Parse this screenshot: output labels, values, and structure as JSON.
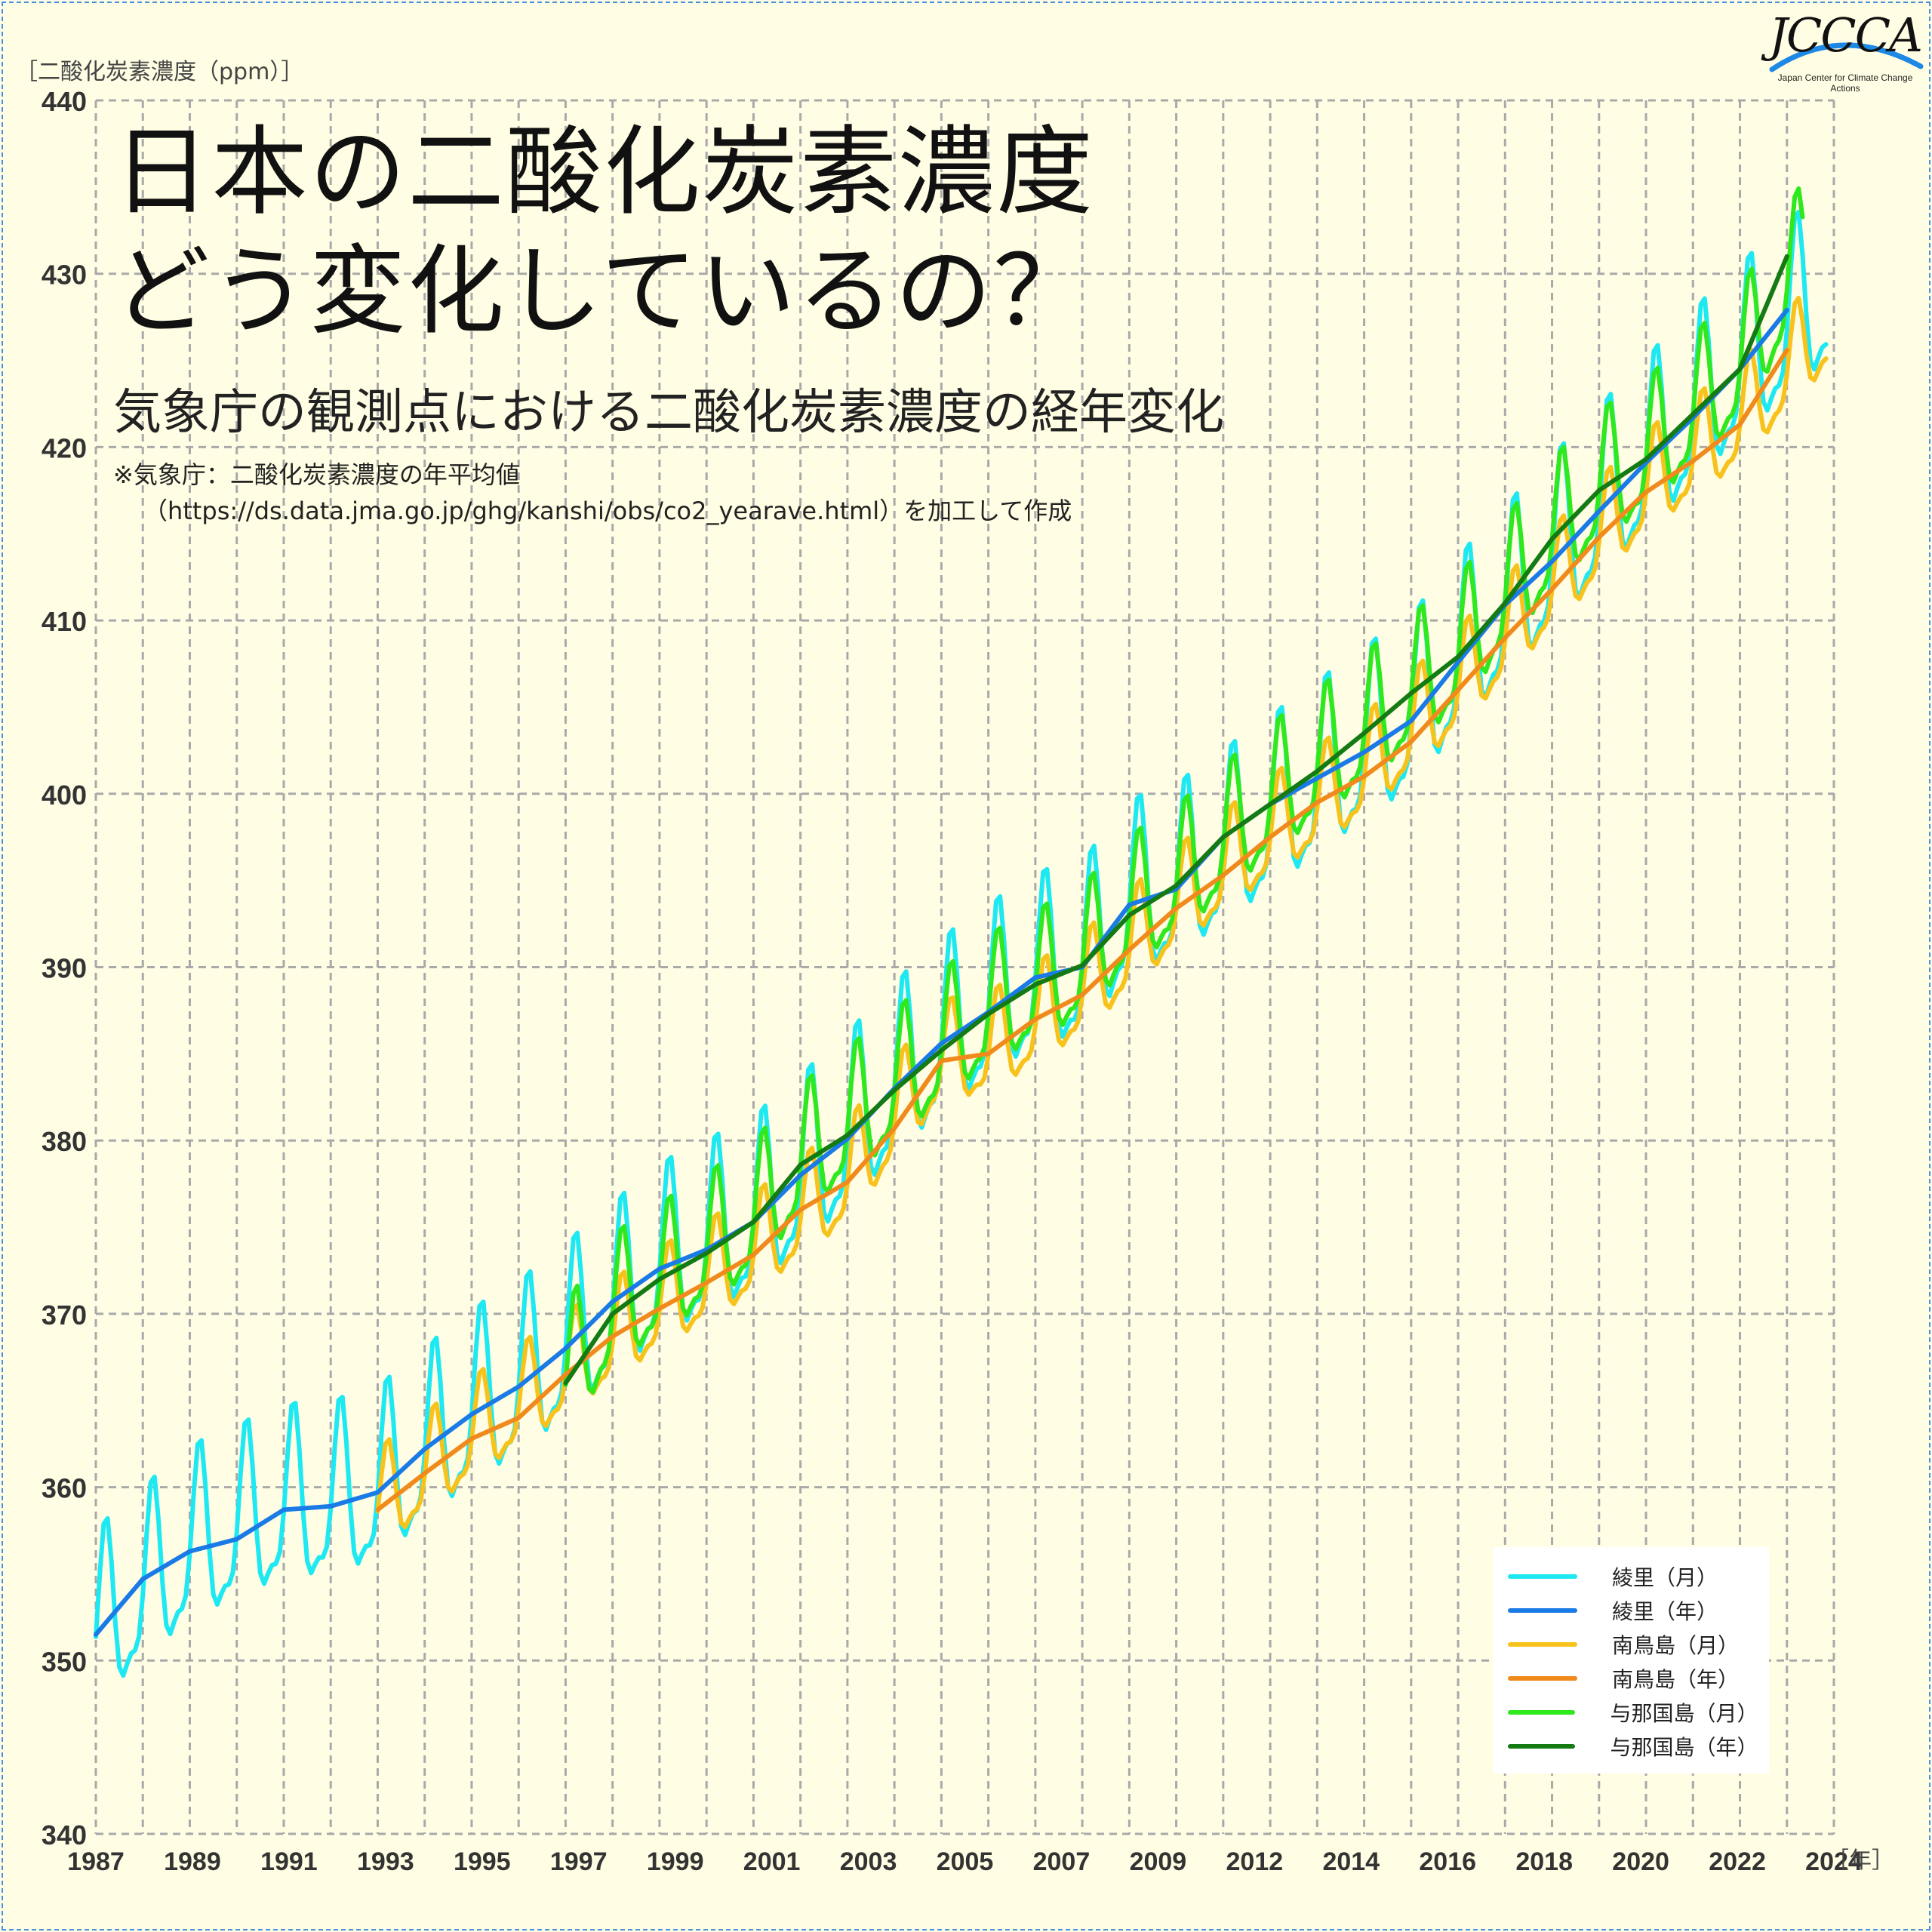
{
  "header": {
    "title_line1": "日本の二酸化炭素濃度",
    "title_line2": "どう変化しているの？",
    "subtitle": "気象庁の観測点における二酸化炭素濃度の経年変化",
    "note_line1": "※気象庁：二酸化炭素濃度の年平均値",
    "note_line2": "（https://ds.data.jma.go.jp/ghg/kanshi/obs/co2_yearave.html）を加工して作成"
  },
  "logo": {
    "text": "JCCCA",
    "subtext": "Japan Center for Climate Change Actions"
  },
  "chart_data": {
    "type": "line",
    "ylabel": "［二酸化炭素濃度（ppm）］",
    "xlabel": "［年］",
    "ylim": [
      340,
      440
    ],
    "xlim": [
      1987,
      2024
    ],
    "yticks": [
      340,
      350,
      360,
      370,
      380,
      390,
      400,
      410,
      420,
      430,
      440
    ],
    "xticks": [
      "1987",
      "1989",
      "1991",
      "1993",
      "1995",
      "1997",
      "1999",
      "2001",
      "2003",
      "2005",
      "2007",
      "2009",
      "2012",
      "2014",
      "2016",
      "2018",
      "2020",
      "2022",
      "2024"
    ],
    "grid": true,
    "legend_position": "bottom-right",
    "series": [
      {
        "name": "綾里（月）",
        "color": "#1ee9f2",
        "kind": "monthly",
        "start": 1987,
        "end": 2023.9,
        "base": [
          [
            1987,
            351.5
          ],
          [
            1989,
            356.3
          ],
          [
            1991,
            358.7
          ],
          [
            1992,
            358.9
          ],
          [
            1993,
            359.7
          ],
          [
            1995,
            364.2
          ],
          [
            1996,
            365.8
          ],
          [
            1997,
            368.0
          ],
          [
            1999,
            372.6
          ],
          [
            2001,
            375.3
          ],
          [
            2003,
            380.1
          ],
          [
            2004,
            383.0
          ],
          [
            2005,
            385.6
          ],
          [
            2007,
            389.4
          ],
          [
            2008,
            390.0
          ],
          [
            2009,
            393.6
          ],
          [
            2010,
            394.5
          ],
          [
            2012,
            398.4
          ],
          [
            2014,
            402.4
          ],
          [
            2015,
            404.2
          ],
          [
            2016,
            407.6
          ],
          [
            2018,
            413.4
          ],
          [
            2020,
            419.1
          ],
          [
            2022,
            424.5
          ],
          [
            2023.9,
            429.0
          ]
        ],
        "amplitude": 8.6
      },
      {
        "name": "綾里（年）",
        "color": "#1a7ae6",
        "kind": "annual",
        "x": [
          1987,
          1988,
          1989,
          1990,
          1991,
          1992,
          1993,
          1994,
          1995,
          1996,
          1997,
          1998,
          1999,
          2000,
          2001,
          2002,
          2003,
          2004,
          2005,
          2006,
          2007,
          2008,
          2009,
          2010,
          2011,
          2012,
          2013,
          2014,
          2015,
          2016,
          2017,
          2018,
          2019,
          2020,
          2021,
          2022,
          2023
        ],
        "y": [
          351.5,
          354.7,
          356.3,
          357.0,
          358.7,
          358.9,
          359.7,
          362.2,
          364.2,
          365.8,
          368.0,
          370.7,
          372.6,
          373.7,
          375.3,
          378.0,
          380.1,
          383.0,
          385.6,
          387.4,
          389.4,
          390.0,
          393.6,
          394.5,
          397.5,
          399.4,
          400.9,
          402.4,
          404.2,
          407.6,
          410.9,
          413.4,
          416.3,
          419.1,
          421.7,
          424.5,
          427.9
        ]
      },
      {
        "name": "南鳥島（月）",
        "color": "#f8c21c",
        "kind": "monthly",
        "start": 1993,
        "end": 2023.9,
        "base": [
          [
            1993,
            358.7
          ],
          [
            1995,
            362.8
          ],
          [
            1997,
            366.5
          ],
          [
            1999,
            370.3
          ],
          [
            2001,
            373.4
          ],
          [
            2003,
            377.6
          ],
          [
            2005,
            384.6
          ],
          [
            2006,
            385.0
          ],
          [
            2008,
            388.4
          ],
          [
            2010,
            393.4
          ],
          [
            2012,
            397.5
          ],
          [
            2014,
            401.0
          ],
          [
            2016,
            406.0
          ],
          [
            2018,
            411.8
          ],
          [
            2020,
            417.4
          ],
          [
            2022,
            421.3
          ],
          [
            2023.9,
            427.0
          ]
        ],
        "amplitude": 5.0
      },
      {
        "name": "南鳥島（年）",
        "color": "#f08a1c",
        "kind": "annual",
        "x": [
          1993,
          1994,
          1995,
          1996,
          1997,
          1998,
          1999,
          2000,
          2001,
          2002,
          2003,
          2004,
          2005,
          2006,
          2007,
          2008,
          2009,
          2010,
          2011,
          2012,
          2013,
          2014,
          2015,
          2016,
          2017,
          2018,
          2019,
          2020,
          2021,
          2022,
          2023
        ],
        "y": [
          358.7,
          360.8,
          362.8,
          364.0,
          366.5,
          368.7,
          370.3,
          371.8,
          373.4,
          376.0,
          377.6,
          380.7,
          384.6,
          385.0,
          387.0,
          388.4,
          391.0,
          393.4,
          395.3,
          397.5,
          399.5,
          401.0,
          403.0,
          406.0,
          409.0,
          411.8,
          414.8,
          417.4,
          419.2,
          421.3,
          425.6
        ]
      },
      {
        "name": "与那国島（月）",
        "color": "#2fe81e",
        "kind": "monthly",
        "start": 1997,
        "end": 2023.4,
        "base": [
          [
            1997,
            366.0
          ],
          [
            1998,
            370.0
          ],
          [
            2000,
            373.5
          ],
          [
            2001,
            375.3
          ],
          [
            2002,
            378.6
          ],
          [
            2004,
            382.9
          ],
          [
            2005,
            385.2
          ],
          [
            2006,
            387.3
          ],
          [
            2008,
            390.1
          ],
          [
            2009,
            393.0
          ],
          [
            2010,
            394.7
          ],
          [
            2012,
            399.4
          ],
          [
            2014,
            403.5
          ],
          [
            2016,
            407.9
          ],
          [
            2018,
            414.7
          ],
          [
            2019,
            417.5
          ],
          [
            2020,
            419.3
          ],
          [
            2022,
            424.5
          ],
          [
            2023.4,
            431.0
          ]
        ],
        "amplitude": 6.5
      },
      {
        "name": "与那国島（年）",
        "color": "#147a14",
        "kind": "annual",
        "x": [
          1997,
          1998,
          1999,
          2000,
          2001,
          2002,
          2003,
          2004,
          2005,
          2006,
          2007,
          2008,
          2009,
          2010,
          2011,
          2012,
          2013,
          2014,
          2015,
          2016,
          2017,
          2018,
          2019,
          2020,
          2021,
          2022,
          2023
        ],
        "y": [
          366.0,
          370.0,
          372.0,
          373.5,
          375.3,
          378.6,
          380.3,
          382.9,
          385.2,
          387.3,
          389.0,
          390.1,
          393.0,
          394.7,
          397.5,
          399.4,
          401.3,
          403.5,
          405.8,
          407.9,
          411.0,
          414.7,
          417.5,
          419.3,
          421.9,
          424.5,
          431.0
        ]
      }
    ]
  }
}
